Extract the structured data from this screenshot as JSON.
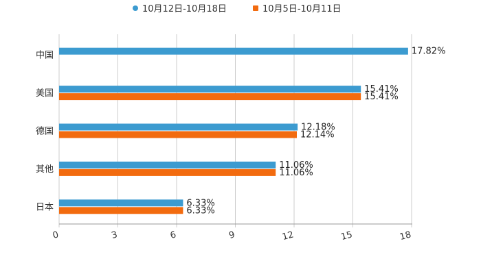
{
  "chart_data": {
    "type": "bar",
    "orientation": "horizontal",
    "categories": [
      "中国",
      "美国",
      "德国",
      "其他",
      "日本"
    ],
    "series": [
      {
        "name": "10月12日-10月18日",
        "color": "#3c9bd0",
        "values": [
          17.82,
          15.41,
          12.18,
          11.06,
          6.33
        ],
        "labels": [
          "17.82%",
          "15.41%",
          "12.18%",
          "11.06%",
          "6.33%"
        ]
      },
      {
        "name": "10月5日-10月11日",
        "color": "#f26b0f",
        "values": [
          null,
          15.41,
          12.14,
          11.06,
          6.33
        ],
        "labels": [
          "",
          "15.41%",
          "12.14%",
          "11.06%",
          "6.33%"
        ]
      }
    ],
    "xlim": [
      0,
      18
    ],
    "xticks": [
      0,
      3,
      6,
      9,
      12,
      15,
      18
    ],
    "xtick_labels": [
      "0",
      "3",
      "6",
      "9",
      "12",
      "15",
      "18"
    ],
    "grid": true,
    "legend": "top-center"
  }
}
